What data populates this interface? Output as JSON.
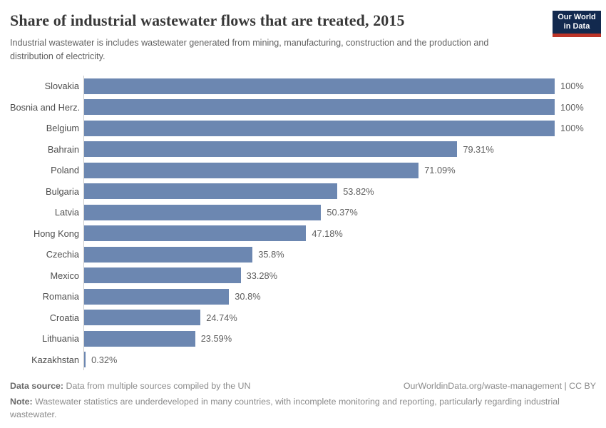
{
  "header": {
    "title": "Share of industrial wastewater flows that are treated, 2015",
    "subtitle": "Industrial wastewater is includes wastewater generated from mining, manufacturing, construction and the production and distribution of electricity.",
    "logo_line1": "Our World",
    "logo_line2": "in Data",
    "logo_bg_color": "#12294e",
    "logo_stripe_color": "#bc3428"
  },
  "chart_data": {
    "type": "bar",
    "orientation": "horizontal",
    "title": "Share of industrial wastewater flows that are treated, 2015",
    "categories": [
      "Slovakia",
      "Bosnia and Herz.",
      "Belgium",
      "Bahrain",
      "Poland",
      "Bulgaria",
      "Latvia",
      "Hong Kong",
      "Czechia",
      "Mexico",
      "Romania",
      "Croatia",
      "Lithuania",
      "Kazakhstan"
    ],
    "values": [
      100,
      100,
      100,
      79.31,
      71.09,
      53.82,
      50.37,
      47.18,
      35.8,
      33.28,
      30.8,
      24.74,
      23.59,
      0.32
    ],
    "value_labels": [
      "100%",
      "100%",
      "100%",
      "79.31%",
      "71.09%",
      "53.82%",
      "50.37%",
      "47.18%",
      "35.8%",
      "33.28%",
      "30.8%",
      "24.74%",
      "23.59%",
      "0.32%"
    ],
    "xlim": [
      0,
      100
    ],
    "bar_color": "#6c87b1",
    "axis_line_color": "#cccccc",
    "grid": false,
    "legend": false
  },
  "footer": {
    "source_label": "Data source:",
    "source_text": " Data from multiple sources compiled by the UN",
    "link_text": "OurWorldinData.org/waste-management | CC BY",
    "note_label": "Note:",
    "note_text": " Wastewater statistics are underdeveloped in many countries, with incomplete monitoring and reporting, particularly regarding industrial wastewater."
  }
}
